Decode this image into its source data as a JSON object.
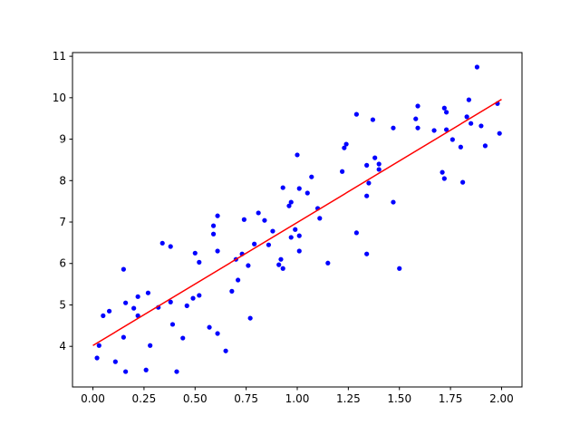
{
  "chart_data": {
    "type": "scatter",
    "xlim": [
      -0.1,
      2.1
    ],
    "ylim": [
      3.02,
      11.09
    ],
    "xticks": [
      {
        "value": 0,
        "label": "0.00"
      },
      {
        "value": 0.25,
        "label": "0.25"
      },
      {
        "value": 0.5,
        "label": "0.50"
      },
      {
        "value": 0.75,
        "label": "0.75"
      },
      {
        "value": 1,
        "label": "1.00"
      },
      {
        "value": 1.25,
        "label": "1.25"
      },
      {
        "value": 1.5,
        "label": "1.50"
      },
      {
        "value": 1.75,
        "label": "1.75"
      },
      {
        "value": 2,
        "label": "2.00"
      }
    ],
    "yticks": [
      4,
      5,
      6,
      7,
      8,
      9,
      10,
      11
    ],
    "series": [
      {
        "type": "scatter",
        "color": "#0000ff",
        "x": [
          0.02,
          0.03,
          0.05,
          0.08,
          0.11,
          0.15,
          0.15,
          0.16,
          0.16,
          0.2,
          0.22,
          0.22,
          0.26,
          0.27,
          0.28,
          0.32,
          0.34,
          0.38,
          0.38,
          0.39,
          0.41,
          0.44,
          0.46,
          0.49,
          0.5,
          0.52,
          0.52,
          0.57,
          0.59,
          0.59,
          0.61,
          0.61,
          0.61,
          0.65,
          0.68,
          0.7,
          0.71,
          0.73,
          0.74,
          0.76,
          0.77,
          0.79,
          0.81,
          0.84,
          0.86,
          0.88,
          0.91,
          0.92,
          0.93,
          0.93,
          0.96,
          0.97,
          0.97,
          0.99,
          1.0,
          1.01,
          1.01,
          1.01,
          1.05,
          1.07,
          1.1,
          1.11,
          1.15,
          1.22,
          1.23,
          1.24,
          1.29,
          1.29,
          1.34,
          1.34,
          1.34,
          1.35,
          1.37,
          1.38,
          1.4,
          1.4,
          1.47,
          1.47,
          1.5,
          1.58,
          1.59,
          1.59,
          1.67,
          1.71,
          1.72,
          1.72,
          1.73,
          1.73,
          1.76,
          1.8,
          1.81,
          1.83,
          1.84,
          1.85,
          1.88,
          1.9,
          1.92,
          1.98,
          1.99
        ],
        "values": [
          3.72,
          4.02,
          4.74,
          4.85,
          3.63,
          5.86,
          4.22,
          5.05,
          3.39,
          4.92,
          5.2,
          4.74,
          3.43,
          5.29,
          4.02,
          4.94,
          6.49,
          6.41,
          5.07,
          4.53,
          3.39,
          4.2,
          4.98,
          5.16,
          6.25,
          6.03,
          5.23,
          4.46,
          6.91,
          6.71,
          4.31,
          7.15,
          6.3,
          3.89,
          5.33,
          6.1,
          5.6,
          6.23,
          7.06,
          5.95,
          4.68,
          6.47,
          7.22,
          7.04,
          6.45,
          6.78,
          5.97,
          6.1,
          5.88,
          7.83,
          7.39,
          7.48,
          6.63,
          6.82,
          8.62,
          6.3,
          6.67,
          7.81,
          7.7,
          8.09,
          7.33,
          7.09,
          6.01,
          8.22,
          8.79,
          8.88,
          9.6,
          6.74,
          8.37,
          7.63,
          6.23,
          7.94,
          9.47,
          8.55,
          8.4,
          8.27,
          7.48,
          9.27,
          5.88,
          9.49,
          9.8,
          9.27,
          9.21,
          8.2,
          8.05,
          9.75,
          9.65,
          9.23,
          8.99,
          8.81,
          7.96,
          9.54,
          9.95,
          9.38,
          10.74,
          9.32,
          8.84,
          9.86,
          9.14
        ]
      },
      {
        "type": "line",
        "color": "#ff0000",
        "x": [
          0,
          2
        ],
        "values": [
          4.02,
          9.96
        ]
      }
    ]
  }
}
